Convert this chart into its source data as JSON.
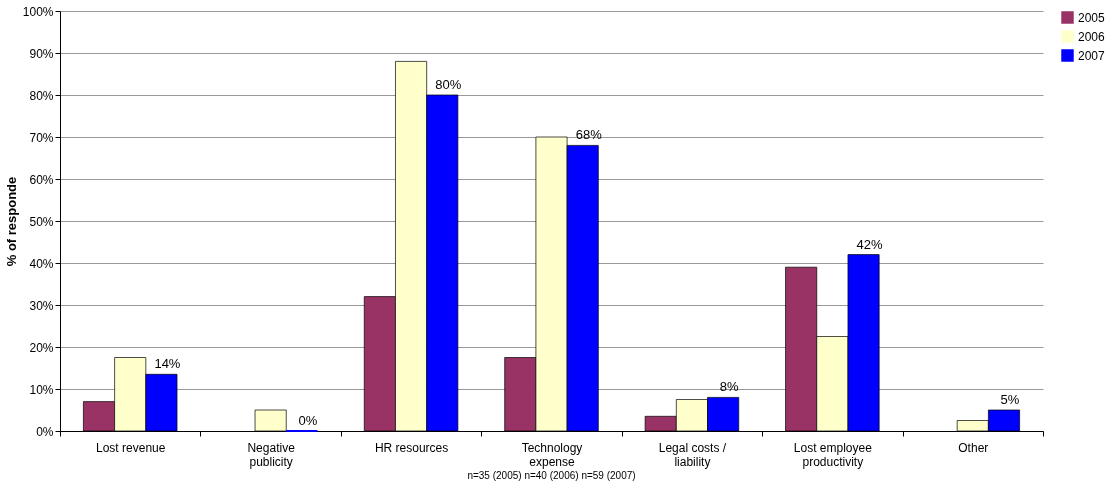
{
  "chart_data": {
    "type": "bar",
    "ylabel": "% of responde",
    "categories": [
      "Lost revenue",
      "Negative publicity",
      "HR resources",
      "Technology expense",
      "Legal costs / liability",
      "Lost employee productivity",
      "Other"
    ],
    "series": [
      {
        "name": "2005",
        "color": "#993366",
        "values": [
          7,
          0,
          32,
          17.5,
          3.5,
          39,
          0
        ]
      },
      {
        "name": "2006",
        "color": "#ffffcc",
        "values": [
          17.5,
          5,
          88,
          70,
          7.5,
          22.5,
          2.5
        ]
      },
      {
        "name": "2007",
        "color": "#0000ff",
        "values": [
          13.5,
          0,
          80,
          68,
          8,
          42,
          5
        ],
        "value_labels": [
          "14%",
          "0%",
          "80%",
          "68%",
          "8%",
          "42%",
          "5%"
        ]
      }
    ],
    "ylim": [
      0,
      100
    ],
    "yticks": [
      {
        "value": 0,
        "label": "0%"
      },
      {
        "value": 10,
        "label": "10%"
      },
      {
        "value": 20,
        "label": "20%"
      },
      {
        "value": 30,
        "label": "30%"
      },
      {
        "value": 40,
        "label": "40%"
      },
      {
        "value": 50,
        "label": "50%"
      },
      {
        "value": 60,
        "label": "60%"
      },
      {
        "value": 70,
        "label": "70%"
      },
      {
        "value": 80,
        "label": "80%"
      },
      {
        "value": 90,
        "label": "90%"
      },
      {
        "value": 100,
        "label": "100%"
      }
    ],
    "grid": "y",
    "legend": "top right",
    "annotations": [
      "n=35 (2005)  n=40 (2006)  n=59 (2007)"
    ]
  }
}
